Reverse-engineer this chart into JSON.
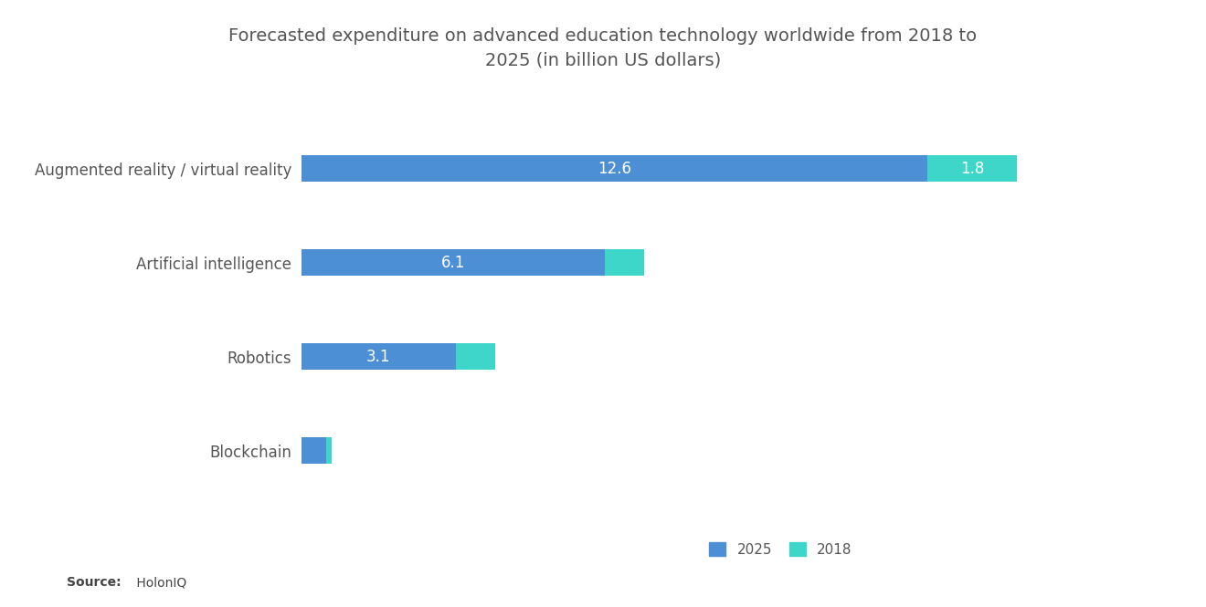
{
  "title_line1": "Forecasted expenditure on advanced education technology worldwide from 2018 to",
  "title_line2": "2025 (in billion US dollars)",
  "categories": [
    "Augmented reality / virtual reality",
    "Artificial intelligence",
    "Robotics",
    "Blockchain"
  ],
  "values_2025": [
    12.6,
    6.1,
    3.1,
    0.5
  ],
  "values_2018": [
    1.8,
    0.8,
    0.8,
    0.1
  ],
  "labels_2025": [
    "12.6",
    "6.1",
    "3.1",
    ""
  ],
  "labels_2018": [
    "1.8",
    "",
    "",
    ""
  ],
  "color_2025": "#4d8fd4",
  "color_2018": "#3dd6c8",
  "background_color": "#ffffff",
  "legend_2025": "2025",
  "legend_2018": "2018",
  "title_fontsize": 14,
  "label_fontsize": 12,
  "cat_fontsize": 12,
  "bar_height": 0.28,
  "xlim": [
    0,
    16.5
  ]
}
